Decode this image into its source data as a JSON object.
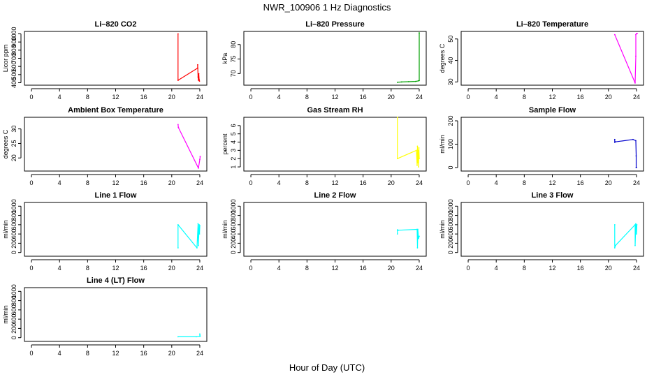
{
  "figure": {
    "title": "NWR_100906  1 Hz Diagnostics",
    "xlabel": "Hour of Day (UTC)"
  },
  "chart_data": [
    {
      "type": "line",
      "title": "Li–820 CO2",
      "ylabel": "Licor ppm",
      "color": "#ff0000",
      "xlim": [
        -1,
        25
      ],
      "xticks": [
        0,
        4,
        8,
        12,
        16,
        20,
        24
      ],
      "xtick_labels": [
        "0",
        "4",
        "8",
        "12",
        "16",
        "20",
        "24"
      ],
      "ylim": [
        370,
        1030
      ],
      "yticks": [
        400,
        500,
        600,
        700,
        800,
        900,
        1000
      ],
      "ytick_labels": [
        "400",
        "500",
        "600",
        "700",
        "800",
        "900",
        "1000"
      ],
      "series": [
        {
          "x": [
            20.9,
            20.9,
            20.9,
            23.7,
            23.7,
            23.75,
            23.8,
            23.85,
            23.9,
            23.95
          ],
          "y": [
            1000,
            430,
            430,
            580,
            620,
            470,
            430,
            510,
            440,
            420
          ]
        }
      ]
    },
    {
      "type": "line",
      "title": "Li–820 Pressure",
      "ylabel": "kPa",
      "color": "#00a000",
      "xlim": [
        -1,
        25
      ],
      "xticks": [
        0,
        4,
        8,
        12,
        16,
        20,
        24
      ],
      "xtick_labels": [
        "0",
        "4",
        "8",
        "12",
        "16",
        "20",
        "24"
      ],
      "ylim": [
        66,
        84.5
      ],
      "yticks": [
        70,
        75,
        80
      ],
      "ytick_labels": [
        "70",
        "75",
        "80"
      ],
      "series": [
        {
          "x": [
            20.9,
            21.5,
            22.5,
            23.5,
            23.9,
            24.0,
            24.0
          ],
          "y": [
            67.0,
            67.1,
            67.2,
            67.3,
            67.5,
            67.6,
            84
          ]
        }
      ]
    },
    {
      "type": "line",
      "title": "Li–820 Temperature",
      "ylabel": "degrees C",
      "color": "#ff00ff",
      "xlim": [
        -1,
        25
      ],
      "xticks": [
        0,
        4,
        8,
        12,
        16,
        20,
        24
      ],
      "xtick_labels": [
        "0",
        "4",
        "8",
        "12",
        "16",
        "20",
        "24"
      ],
      "ylim": [
        28.5,
        53.5
      ],
      "yticks": [
        30,
        40,
        50
      ],
      "ytick_labels": [
        "30",
        "40",
        "50"
      ],
      "series": [
        {
          "x": [
            20.9,
            23.8,
            23.9,
            23.9,
            24.0,
            24.1
          ],
          "y": [
            52,
            29.5,
            42,
            52,
            52.5,
            52.5
          ]
        }
      ]
    },
    {
      "type": "line",
      "title": "Ambient Box Temperature",
      "ylabel": "degrees C",
      "color": "#ff00ff",
      "xlim": [
        -1,
        25
      ],
      "xticks": [
        0,
        4,
        8,
        12,
        16,
        20,
        24
      ],
      "xtick_labels": [
        "0",
        "4",
        "8",
        "12",
        "16",
        "20",
        "24"
      ],
      "ylim": [
        15.5,
        34
      ],
      "yticks": [
        20,
        25,
        30
      ],
      "ytick_labels": [
        "20",
        "25",
        "30"
      ],
      "series": [
        {
          "x": [
            20.9,
            20.95,
            23.8,
            24.0,
            24.05
          ],
          "y": [
            31.5,
            30.5,
            16.5,
            19.5,
            20.5
          ]
        }
      ]
    },
    {
      "type": "line",
      "title": "Gas Stream RH",
      "ylabel": "percent",
      "color": "#ffff00",
      "xlim": [
        -1,
        25
      ],
      "xticks": [
        0,
        4,
        8,
        12,
        16,
        20,
        24
      ],
      "xtick_labels": [
        "0",
        "4",
        "8",
        "12",
        "16",
        "20",
        "24"
      ],
      "ylim": [
        0.5,
        7
      ],
      "yticks": [
        1,
        2,
        3,
        4,
        5,
        6
      ],
      "ytick_labels": [
        "1",
        "2",
        "3",
        "4",
        "5",
        "6"
      ],
      "series": [
        {
          "x": [
            20.9,
            20.9,
            23.6,
            23.7,
            23.75,
            23.8,
            23.85,
            23.9,
            23.95,
            24.0
          ],
          "y": [
            7,
            2,
            3,
            1.2,
            3.5,
            1.5,
            3.0,
            1.0,
            3.3,
            2.0
          ]
        }
      ]
    },
    {
      "type": "line",
      "title": "Sample Flow",
      "ylabel": "ml/min",
      "color": "#0000cc",
      "xlim": [
        -1,
        25
      ],
      "xticks": [
        0,
        4,
        8,
        12,
        16,
        20,
        24
      ],
      "xtick_labels": [
        "0",
        "4",
        "8",
        "12",
        "16",
        "20",
        "24"
      ],
      "ylim": [
        -15,
        215
      ],
      "yticks": [
        0,
        100,
        200
      ],
      "ytick_labels": [
        "0",
        "100",
        "200"
      ],
      "series": [
        {
          "x": [
            20.9,
            20.9,
            21.0,
            23.5,
            23.9,
            23.95,
            23.95,
            24.0
          ],
          "y": [
            120,
            108,
            110,
            120,
            115,
            50,
            0,
            0
          ]
        }
      ]
    },
    {
      "type": "line",
      "title": "Line 1 Flow",
      "ylabel": "ml/min",
      "color": "#00ffff",
      "xlim": [
        -1,
        25
      ],
      "xticks": [
        0,
        4,
        8,
        12,
        16,
        20,
        24
      ],
      "xtick_labels": [
        "0",
        "4",
        "8",
        "12",
        "16",
        "20",
        "24"
      ],
      "ylim": [
        -80,
        1080
      ],
      "yticks": [
        0,
        200,
        400,
        600,
        800,
        1000
      ],
      "ytick_labels": [
        "0",
        "200",
        "400",
        "600",
        "800",
        "1000"
      ],
      "series": [
        {
          "x": [
            20.9,
            20.9,
            23.6,
            23.75,
            23.8,
            23.9,
            23.95,
            24.0
          ],
          "y": [
            100,
            600,
            100,
            620,
            150,
            600,
            400,
            580
          ]
        }
      ]
    },
    {
      "type": "line",
      "title": "Line 2 Flow",
      "ylabel": "ml/min",
      "color": "#00ffff",
      "xlim": [
        -1,
        25
      ],
      "xticks": [
        0,
        4,
        8,
        12,
        16,
        20,
        24
      ],
      "xtick_labels": [
        "0",
        "4",
        "8",
        "12",
        "16",
        "20",
        "24"
      ],
      "ylim": [
        -80,
        1080
      ],
      "yticks": [
        0,
        200,
        400,
        600,
        800,
        1000
      ],
      "ytick_labels": [
        "0",
        "200",
        "400",
        "600",
        "800",
        "1000"
      ],
      "series": [
        {
          "x": [
            20.9,
            20.9,
            21.0,
            23.7,
            23.75,
            23.8,
            23.9,
            24.0
          ],
          "y": [
            400,
            490,
            480,
            500,
            100,
            500,
            300,
            350
          ]
        }
      ]
    },
    {
      "type": "line",
      "title": "Line 3 Flow",
      "ylabel": "ml/min",
      "color": "#00ffff",
      "xlim": [
        -1,
        25
      ],
      "xticks": [
        0,
        4,
        8,
        12,
        16,
        20,
        24
      ],
      "xtick_labels": [
        "0",
        "4",
        "8",
        "12",
        "16",
        "20",
        "24"
      ],
      "ylim": [
        -80,
        1080
      ],
      "yticks": [
        0,
        200,
        400,
        600,
        800,
        1000
      ],
      "ytick_labels": [
        "0",
        "200",
        "400",
        "600",
        "800",
        "1000"
      ],
      "series": [
        {
          "x": [
            20.9,
            20.9,
            21.0,
            23.8,
            23.8,
            23.9,
            24.0,
            24.05
          ],
          "y": [
            600,
            100,
            150,
            600,
            150,
            620,
            400,
            600
          ]
        }
      ]
    },
    {
      "type": "line",
      "title": "Line 4 (LT) Flow",
      "ylabel": "ml/min",
      "color": "#00ffff",
      "xlim": [
        -1,
        25
      ],
      "xticks": [
        0,
        4,
        8,
        12,
        16,
        20,
        24
      ],
      "xtick_labels": [
        "0",
        "4",
        "8",
        "12",
        "16",
        "20",
        "24"
      ],
      "ylim": [
        -80,
        1080
      ],
      "yticks": [
        0,
        200,
        400,
        600,
        800,
        1000
      ],
      "ytick_labels": [
        "0",
        "200",
        "400",
        "600",
        "800",
        "1000"
      ],
      "series": [
        {
          "x": [
            20.9,
            23.5,
            24.0,
            24.0,
            24.05
          ],
          "y": [
            20,
            20,
            30,
            80,
            30
          ]
        }
      ]
    }
  ]
}
